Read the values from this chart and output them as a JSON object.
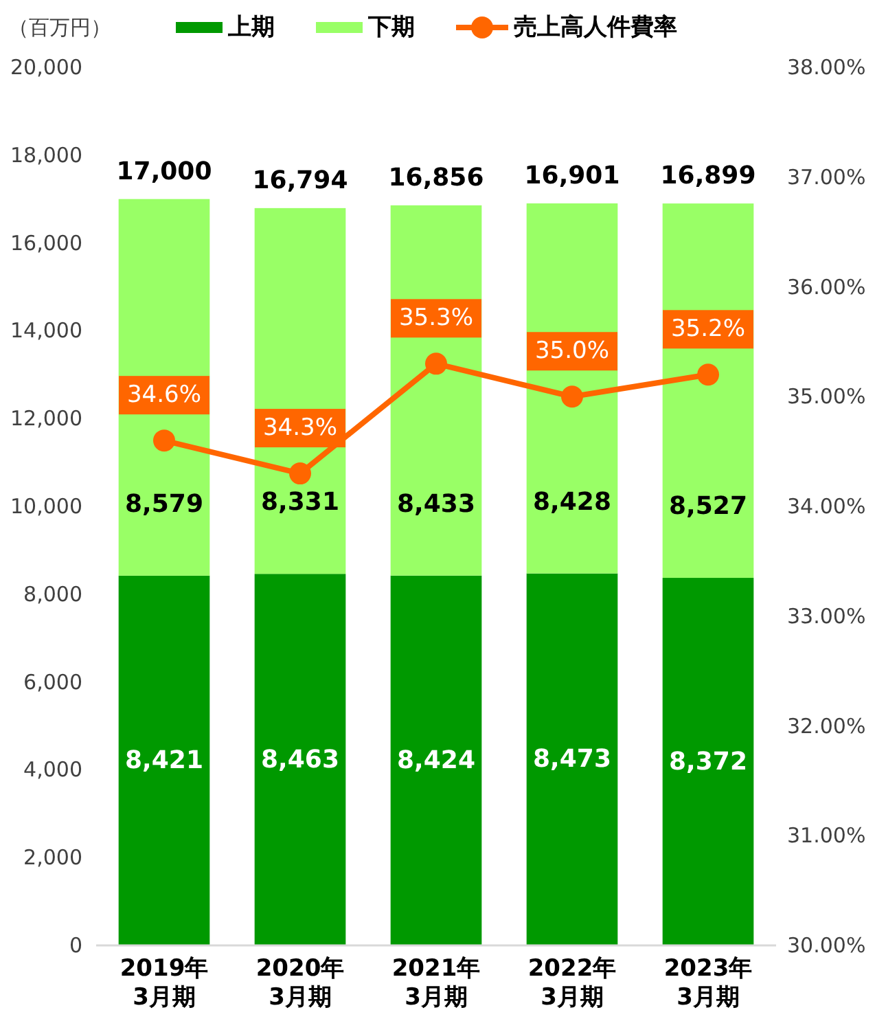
{
  "chart_data": {
    "type": "bar",
    "stacked": true,
    "ylabel": "（百万円）",
    "categories": [
      "2019年\n3月期",
      "2020年\n3月期",
      "2021年\n3月期",
      "2022年\n3月期",
      "2023年\n3月期"
    ],
    "series": [
      {
        "name": "上期",
        "color": "#009900",
        "values": [
          8421,
          8463,
          8424,
          8473,
          8372
        ],
        "value_labels": [
          "8,421",
          "8,463",
          "8,424",
          "8,473",
          "8,372"
        ]
      },
      {
        "name": "下期",
        "color": "#99ff66",
        "values": [
          8579,
          8331,
          8433,
          8428,
          8527
        ],
        "value_labels": [
          "8,579",
          "8,331",
          "8,433",
          "8,428",
          "8,527"
        ]
      },
      {
        "name": "売上高人件費率",
        "type": "line",
        "axis": "y2",
        "color": "#ff6600",
        "marker": "circle",
        "line_style": "solid",
        "values": [
          34.6,
          34.3,
          35.3,
          35.0,
          35.2
        ],
        "value_labels": [
          "34.6%",
          "34.3%",
          "35.3%",
          "35.0%",
          "35.2%"
        ]
      }
    ],
    "totals": [
      "17,000",
      "16,794",
      "16,856",
      "16,901",
      "16,899"
    ],
    "ylim": [
      0,
      20000
    ],
    "yticks": [
      0,
      {
        "value": 2000,
        "label": "2,000"
      },
      {
        "value": 4000,
        "label": "4,000"
      },
      {
        "value": 6000,
        "label": "6,000"
      },
      {
        "value": 8000,
        "label": "8,000"
      },
      {
        "value": 10000,
        "label": "10,000"
      },
      {
        "value": 12000,
        "label": "12,000"
      },
      {
        "value": 14000,
        "label": "14,000"
      },
      {
        "value": 16000,
        "label": "16,000"
      },
      {
        "value": 18000,
        "label": "18,000"
      },
      {
        "value": 20000,
        "label": "20,000"
      }
    ],
    "y2lim": [
      30,
      38
    ],
    "y2ticks": [
      {
        "value": 30,
        "label": "30.00%"
      },
      {
        "value": 31,
        "label": "31.00%"
      },
      {
        "value": 32,
        "label": "32.00%"
      },
      {
        "value": 33,
        "label": "33.00%"
      },
      {
        "value": 34,
        "label": "34.00%"
      },
      {
        "value": 35,
        "label": "35.00%"
      },
      {
        "value": 36,
        "label": "36.00%"
      },
      {
        "value": 37,
        "label": "37.00%"
      },
      {
        "value": 38,
        "label": "38.00%"
      }
    ],
    "legend": "top"
  }
}
